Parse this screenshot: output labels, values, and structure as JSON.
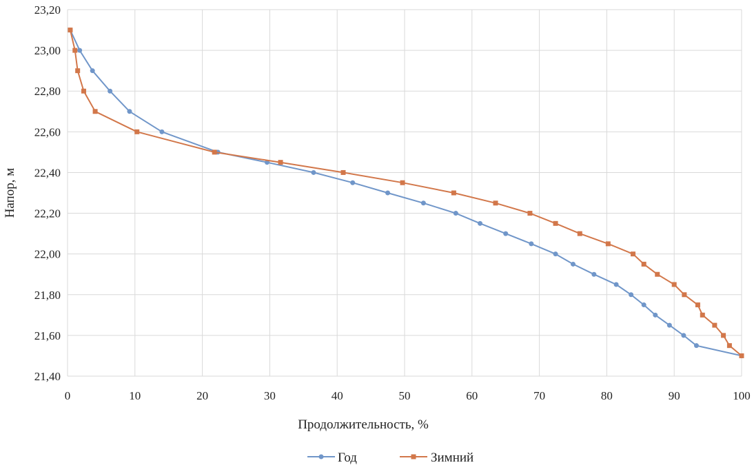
{
  "chart_data": {
    "type": "line",
    "title": "",
    "xlabel": "Продолжительность, %",
    "ylabel": "Напор, м",
    "xlim": [
      0,
      100
    ],
    "ylim": [
      21.4,
      23.2
    ],
    "x_ticks": [
      0,
      10,
      20,
      30,
      40,
      50,
      60,
      70,
      80,
      90,
      100
    ],
    "x_tick_labels": [
      "0",
      "10",
      "20",
      "30",
      "40",
      "50",
      "60",
      "70",
      "80",
      "90",
      "100"
    ],
    "y_ticks": [
      21.4,
      21.6,
      21.8,
      22.0,
      22.2,
      22.4,
      22.6,
      22.8,
      23.0,
      23.2
    ],
    "y_tick_labels": [
      "21,40",
      "21,60",
      "21,80",
      "22,00",
      "22,20",
      "22,40",
      "22,60",
      "22,80",
      "23,00",
      "23,20"
    ],
    "grid": true,
    "legend_position": "bottom",
    "series": [
      {
        "name": "Год",
        "color": "#7096c9",
        "marker": "circle",
        "points": [
          [
            0.4,
            23.1
          ],
          [
            1.8,
            23.0
          ],
          [
            3.7,
            22.9
          ],
          [
            6.3,
            22.8
          ],
          [
            9.2,
            22.7
          ],
          [
            14.0,
            22.6
          ],
          [
            22.3,
            22.5
          ],
          [
            29.6,
            22.45
          ],
          [
            36.5,
            22.4
          ],
          [
            42.3,
            22.35
          ],
          [
            47.5,
            22.3
          ],
          [
            52.8,
            22.25
          ],
          [
            57.6,
            22.2
          ],
          [
            61.2,
            22.15
          ],
          [
            65.0,
            22.1
          ],
          [
            68.8,
            22.05
          ],
          [
            72.4,
            22.0
          ],
          [
            75.0,
            21.95
          ],
          [
            78.1,
            21.9
          ],
          [
            81.4,
            21.85
          ],
          [
            83.6,
            21.8
          ],
          [
            85.5,
            21.75
          ],
          [
            87.2,
            21.7
          ],
          [
            89.3,
            21.65
          ],
          [
            91.4,
            21.6
          ],
          [
            93.3,
            21.55
          ],
          [
            100.0,
            21.5
          ]
        ]
      },
      {
        "name": "Зимний",
        "color": "#d2774a",
        "marker": "square",
        "points": [
          [
            0.4,
            23.1
          ],
          [
            1.1,
            23.0
          ],
          [
            1.5,
            22.9
          ],
          [
            2.4,
            22.8
          ],
          [
            4.1,
            22.7
          ],
          [
            10.3,
            22.6
          ],
          [
            21.8,
            22.5
          ],
          [
            31.6,
            22.45
          ],
          [
            40.9,
            22.4
          ],
          [
            49.7,
            22.35
          ],
          [
            57.3,
            22.3
          ],
          [
            63.5,
            22.25
          ],
          [
            68.6,
            22.2
          ],
          [
            72.4,
            22.15
          ],
          [
            76.0,
            22.1
          ],
          [
            80.2,
            22.05
          ],
          [
            83.9,
            22.0
          ],
          [
            85.5,
            21.95
          ],
          [
            87.5,
            21.9
          ],
          [
            90.0,
            21.85
          ],
          [
            91.5,
            21.8
          ],
          [
            93.5,
            21.75
          ],
          [
            94.2,
            21.7
          ],
          [
            96.0,
            21.65
          ],
          [
            97.3,
            21.6
          ],
          [
            98.2,
            21.55
          ],
          [
            100.0,
            21.5
          ]
        ]
      }
    ]
  }
}
